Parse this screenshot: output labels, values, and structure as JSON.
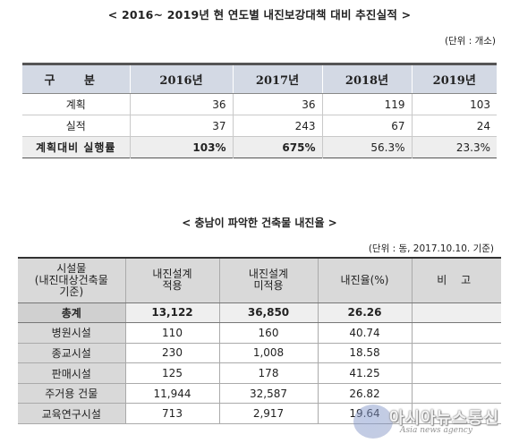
{
  "section1": {
    "title": "< 2016~ 2019년 현 연도별 내진보강대책 대비 추진실적 >",
    "unit": "(단위 : 개소)",
    "headers": [
      "구 분",
      "2016년",
      "2017년",
      "2018년",
      "2019년"
    ],
    "rows": [
      {
        "label": "계획",
        "values": [
          "36",
          "36",
          "119",
          "103"
        ]
      },
      {
        "label": "실적",
        "values": [
          "37",
          "243",
          "67",
          "24"
        ]
      },
      {
        "label": "계획대비 실행률",
        "values": [
          "103%",
          "675%",
          "56.3%",
          "23.3%"
        ]
      }
    ]
  },
  "section2": {
    "title": "< 충남이 파악한 건축물 내진율 >",
    "unit": "(단위 : 동, 2017.10.10. 기준)",
    "headers": [
      "시설물\n(내진대상건축물\n기준)",
      "내진설계\n적용",
      "내진설계\n미적용",
      "내진율(%)",
      "비 고"
    ],
    "rows": [
      {
        "name": "총계",
        "applied": "13,122",
        "not_applied": "36,850",
        "rate": "26.26",
        "note": ""
      },
      {
        "name": "병원시설",
        "applied": "110",
        "not_applied": "160",
        "rate": "40.74",
        "note": ""
      },
      {
        "name": "종교시설",
        "applied": "230",
        "not_applied": "1,008",
        "rate": "18.58",
        "note": ""
      },
      {
        "name": "판매시설",
        "applied": "125",
        "not_applied": "178",
        "rate": "41.25",
        "note": ""
      },
      {
        "name": "주거용 건물",
        "applied": "11,944",
        "not_applied": "32,587",
        "rate": "26.82",
        "note": ""
      },
      {
        "name": "교육연구시설",
        "applied": "713",
        "not_applied": "2,917",
        "rate": "19.64",
        "note": ""
      }
    ]
  },
  "watermark": {
    "text": "아시아뉴스통신",
    "sub": "Asia news agency"
  }
}
